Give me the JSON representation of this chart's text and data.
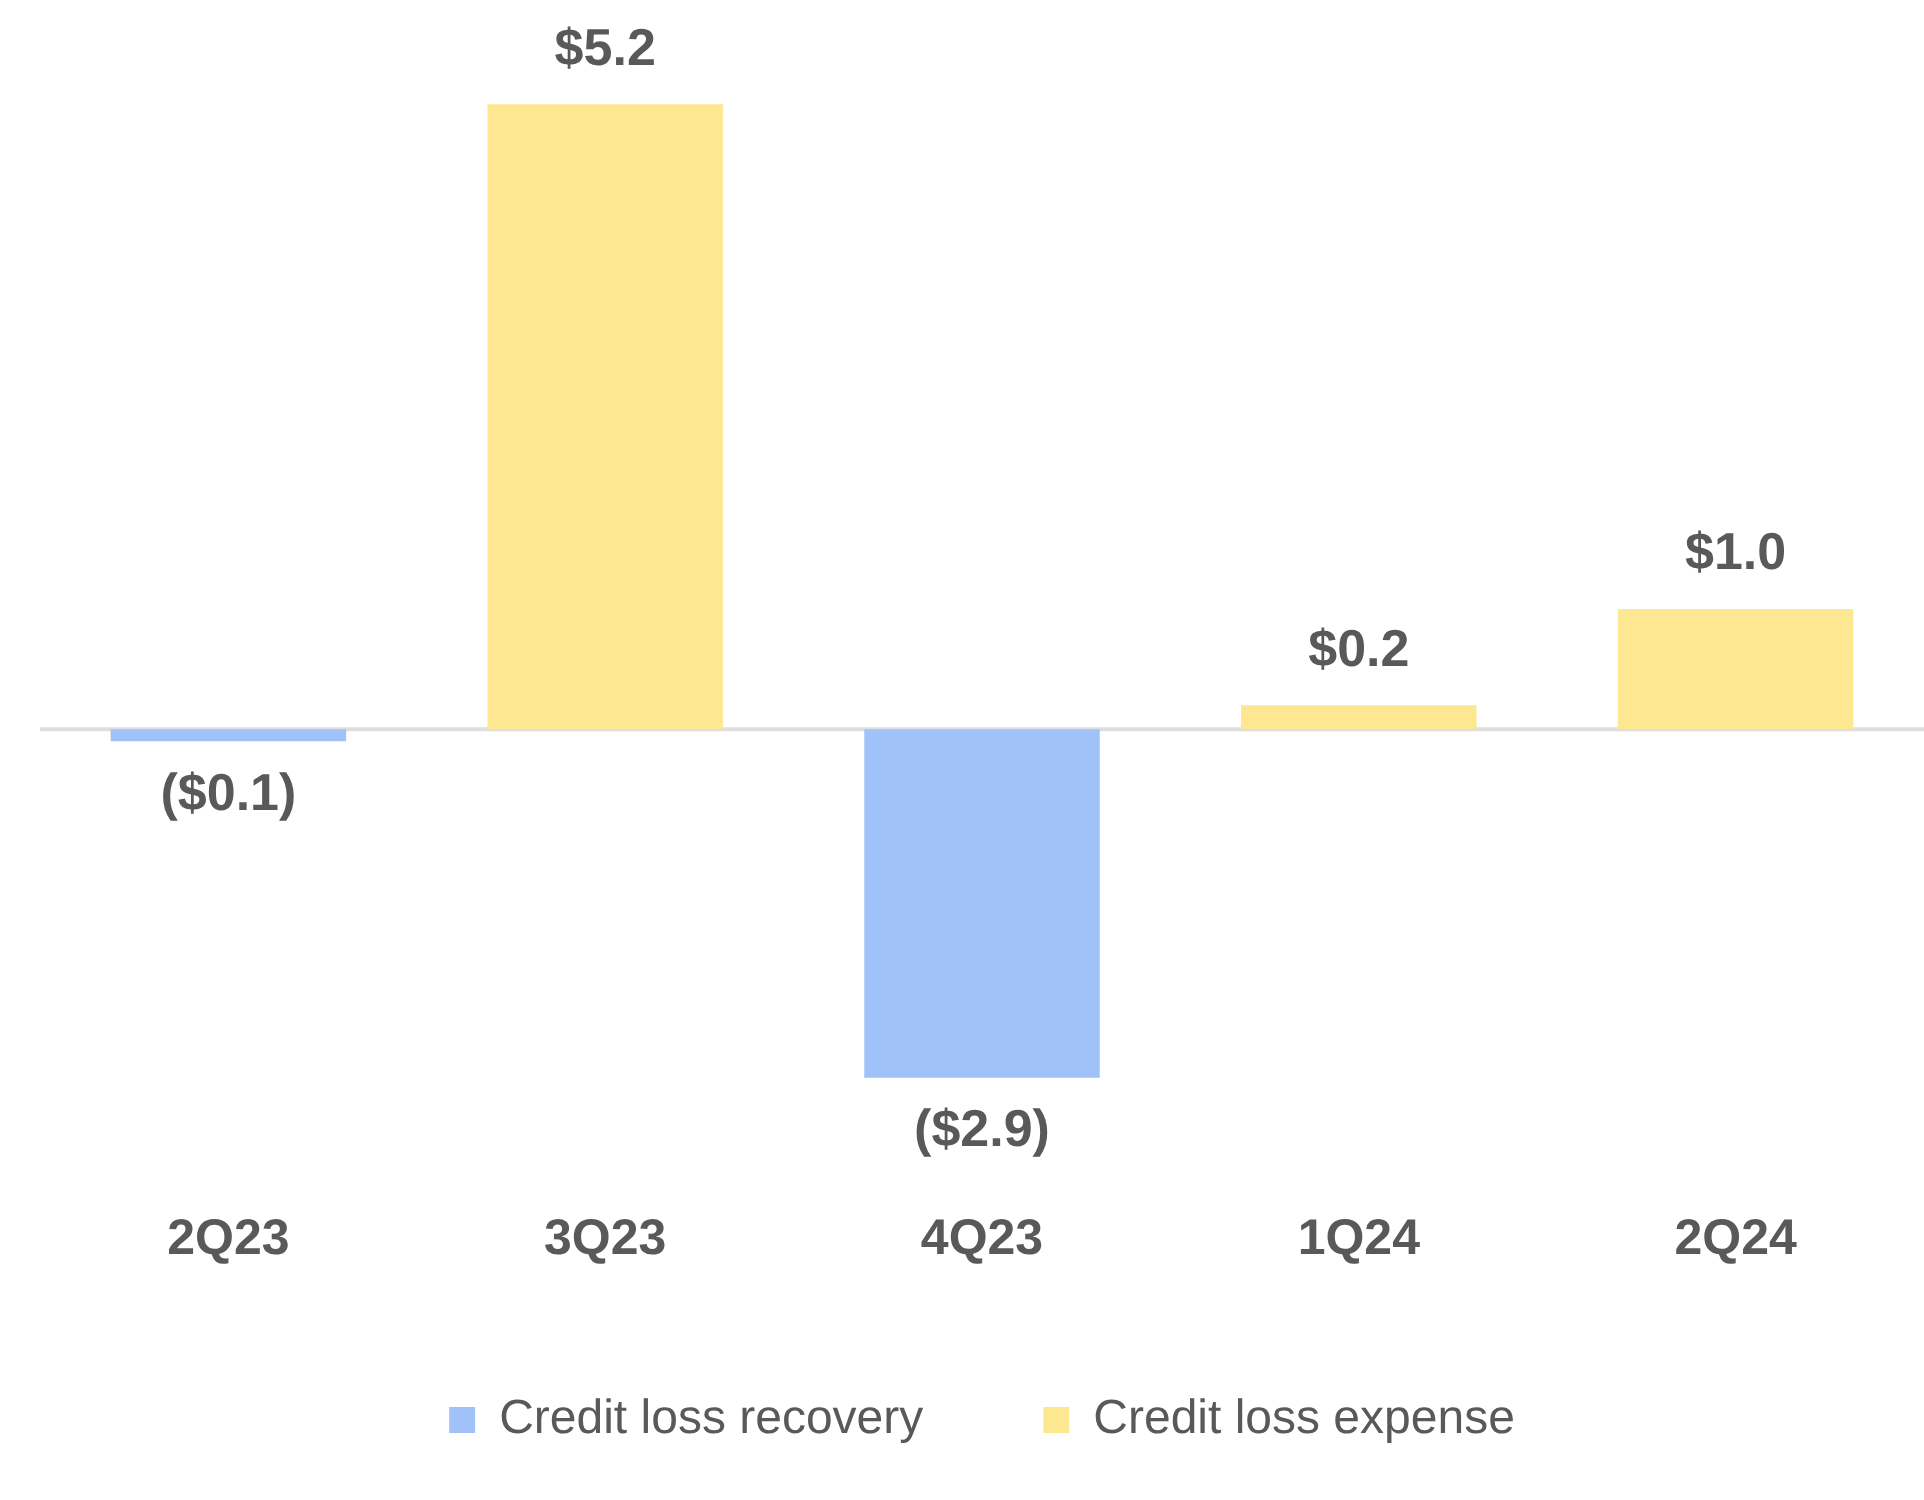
{
  "chart_data": {
    "type": "bar",
    "categories": [
      "2Q23",
      "3Q23",
      "4Q23",
      "1Q24",
      "2Q24"
    ],
    "series": [
      {
        "name": "Credit loss recovery",
        "color": "#a0c2f8",
        "values": [
          -0.1,
          null,
          -2.9,
          null,
          null
        ],
        "value_labels": [
          "($0.1)",
          null,
          "($2.9)",
          null,
          null
        ]
      },
      {
        "name": "Credit loss expense",
        "color": "#fde891",
        "values": [
          null,
          5.2,
          null,
          0.2,
          1.0
        ],
        "value_labels": [
          null,
          "$5.2",
          null,
          "$0.2",
          "$1.0"
        ]
      }
    ],
    "stacked": true,
    "legend": "bottom",
    "tick_labels": "x"
  }
}
